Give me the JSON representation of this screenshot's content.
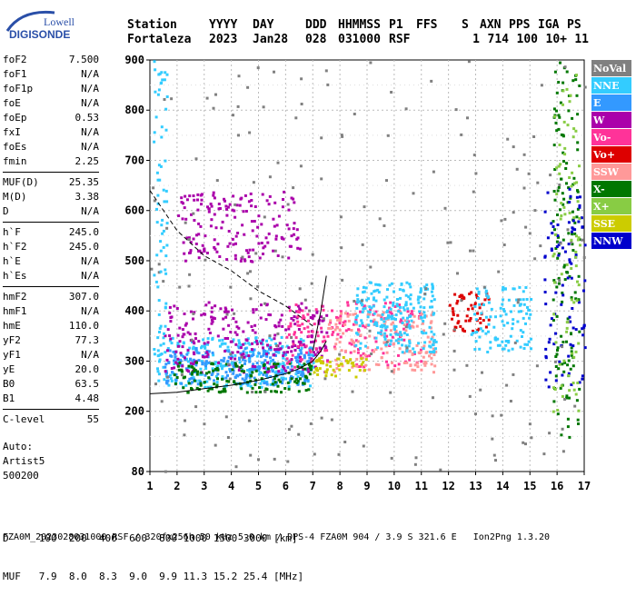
{
  "logo": {
    "line1": "Lowell",
    "line2": "DIGISONDE"
  },
  "header": {
    "labels": [
      "Station",
      "YYYY",
      "DAY",
      "DDD",
      "HHMMSS",
      "P1",
      "FFS",
      "S",
      "AXN",
      "PPS",
      "IGA",
      "PS"
    ],
    "values": [
      "Fortaleza",
      "2023",
      "Jan28",
      "028",
      "031000",
      "RSF",
      "",
      "1",
      "714",
      "100",
      "10+",
      "11"
    ]
  },
  "params": {
    "group1": [
      {
        "k": "foF2",
        "v": "7.500"
      },
      {
        "k": "foF1",
        "v": "N/A"
      },
      {
        "k": "foF1p",
        "v": "N/A"
      },
      {
        "k": "foE",
        "v": "N/A"
      },
      {
        "k": "foEp",
        "v": "0.53"
      },
      {
        "k": "fxI",
        "v": "N/A"
      },
      {
        "k": "foEs",
        "v": "N/A"
      },
      {
        "k": "fmin",
        "v": "2.25"
      }
    ],
    "group2": [
      {
        "k": "MUF(D)",
        "v": "25.35"
      },
      {
        "k": "M(D)",
        "v": "3.38"
      },
      {
        "k": "D",
        "v": "N/A"
      }
    ],
    "group3": [
      {
        "k": "h`F",
        "v": "245.0"
      },
      {
        "k": "h`F2",
        "v": "245.0"
      },
      {
        "k": "h`E",
        "v": "N/A"
      },
      {
        "k": "h`Es",
        "v": "N/A"
      }
    ],
    "group4": [
      {
        "k": "hmF2",
        "v": "307.0"
      },
      {
        "k": "hmF1",
        "v": "N/A"
      },
      {
        "k": "hmE",
        "v": "110.0"
      },
      {
        "k": "yF2",
        "v": "77.3"
      },
      {
        "k": "yF1",
        "v": "N/A"
      },
      {
        "k": "yE",
        "v": "20.0"
      },
      {
        "k": "B0",
        "v": "63.5"
      },
      {
        "k": "B1",
        "v": "4.48"
      }
    ],
    "group5": [
      {
        "k": "C-level",
        "v": "55"
      }
    ]
  },
  "auto": {
    "line1": "Auto:",
    "line2": "Artist5",
    "line3": "500200"
  },
  "legend": [
    {
      "label": "NoVal",
      "color": "#808080"
    },
    {
      "label": "NNE",
      "color": "#33ccff"
    },
    {
      "label": "E",
      "color": "#3399ff"
    },
    {
      "label": "W",
      "color": "#aa00aa"
    },
    {
      "label": "Vo-",
      "color": "#ff3399"
    },
    {
      "label": "Vo+",
      "color": "#dd0000"
    },
    {
      "label": "SSW",
      "color": "#ff9999"
    },
    {
      "label": "X-",
      "color": "#007700"
    },
    {
      "label": "X+",
      "color": "#88cc44"
    },
    {
      "label": "SSE",
      "color": "#cccc00"
    },
    {
      "label": "NNW",
      "color": "#0000cc"
    }
  ],
  "muf_table": {
    "d_label": "D",
    "d_values": [
      "100",
      "200",
      "400",
      "600",
      "800",
      "1000",
      "1500",
      "3000"
    ],
    "d_unit": "[km]",
    "muf_label": "MUF",
    "muf_values": [
      "7.9",
      "8.0",
      "8.3",
      "9.0",
      "9.9",
      "11.3",
      "15.2",
      "25.4"
    ],
    "muf_unit": "[MHz]"
  },
  "footer": "FZA0M_2023028031000.RSF / 320fx256h 50 kHz 5.0 km / DPS-4 FZA0M 904 / 3.9 S 321.6 E   Ion2Png 1.3.20",
  "chart_data": {
    "type": "scatter",
    "title": "",
    "xlabel": "",
    "ylabel": "",
    "xlim": [
      1,
      17
    ],
    "ylim": [
      80,
      900
    ],
    "xticks": [
      1,
      2,
      3,
      4,
      5,
      6,
      7,
      8,
      9,
      10,
      11,
      12,
      13,
      14,
      15,
      16,
      17
    ],
    "yticks": [
      80,
      200,
      300,
      400,
      500,
      600,
      700,
      800,
      900
    ],
    "grid": true,
    "legend_position": "right",
    "traces": [
      {
        "style": "solid",
        "x": [
          1.0,
          2.0,
          3.0,
          4.0,
          5.0,
          6.0,
          6.5,
          7.0,
          7.3,
          7.5
        ],
        "y": [
          235,
          238,
          245,
          252,
          262,
          275,
          285,
          300,
          320,
          340
        ]
      },
      {
        "style": "solid",
        "x": [
          7.0,
          7.15,
          7.3,
          7.5
        ],
        "y": [
          320,
          360,
          400,
          470
        ]
      },
      {
        "style": "dashed",
        "x": [
          1.0,
          2.0,
          3.0,
          4.0,
          5.0,
          6.0,
          7.0
        ],
        "y": [
          640,
          560,
          510,
          480,
          440,
          410,
          370
        ]
      }
    ],
    "clusters": [
      {
        "category": "NNE",
        "x": [
          1.2,
          7.0
        ],
        "y": [
          250,
          350
        ],
        "n": 260
      },
      {
        "category": "E",
        "x": [
          1.5,
          7.0
        ],
        "y": [
          255,
          330
        ],
        "n": 240
      },
      {
        "category": "W",
        "x": [
          1.5,
          7.5
        ],
        "y": [
          280,
          420
        ],
        "n": 260
      },
      {
        "category": "X-",
        "x": [
          1.8,
          7.0
        ],
        "y": [
          240,
          300
        ],
        "n": 140
      },
      {
        "category": "Vo-",
        "x": [
          6.0,
          11.0
        ],
        "y": [
          290,
          420
        ],
        "n": 180
      },
      {
        "category": "SSW",
        "x": [
          7.5,
          11.5
        ],
        "y": [
          280,
          400
        ],
        "n": 160
      },
      {
        "category": "NNE",
        "x": [
          8.5,
          11.5
        ],
        "y": [
          320,
          460
        ],
        "n": 220
      },
      {
        "category": "W",
        "x": [
          2.0,
          6.5
        ],
        "y": [
          500,
          640
        ],
        "n": 170
      },
      {
        "category": "Vo+",
        "x": [
          12.0,
          13.5
        ],
        "y": [
          360,
          440
        ],
        "n": 60
      },
      {
        "category": "NNE",
        "x": [
          12.8,
          15.0
        ],
        "y": [
          320,
          450
        ],
        "n": 110
      },
      {
        "category": "X-",
        "x": [
          15.8,
          16.8
        ],
        "y": [
          150,
          900
        ],
        "n": 140
      },
      {
        "category": "NNW",
        "x": [
          15.5,
          17.0
        ],
        "y": [
          250,
          650
        ],
        "n": 90
      },
      {
        "category": "NoVal",
        "x": [
          1.0,
          17.0
        ],
        "y": [
          80,
          900
        ],
        "n": 220
      },
      {
        "category": "X+",
        "x": [
          15.8,
          16.8
        ],
        "y": [
          200,
          880
        ],
        "n": 80
      },
      {
        "category": "SSE",
        "x": [
          7.0,
          9.0
        ],
        "y": [
          270,
          310
        ],
        "n": 50
      },
      {
        "category": "NNE",
        "x": [
          1.1,
          1.6
        ],
        "y": [
          300,
          900
        ],
        "n": 70
      }
    ]
  }
}
